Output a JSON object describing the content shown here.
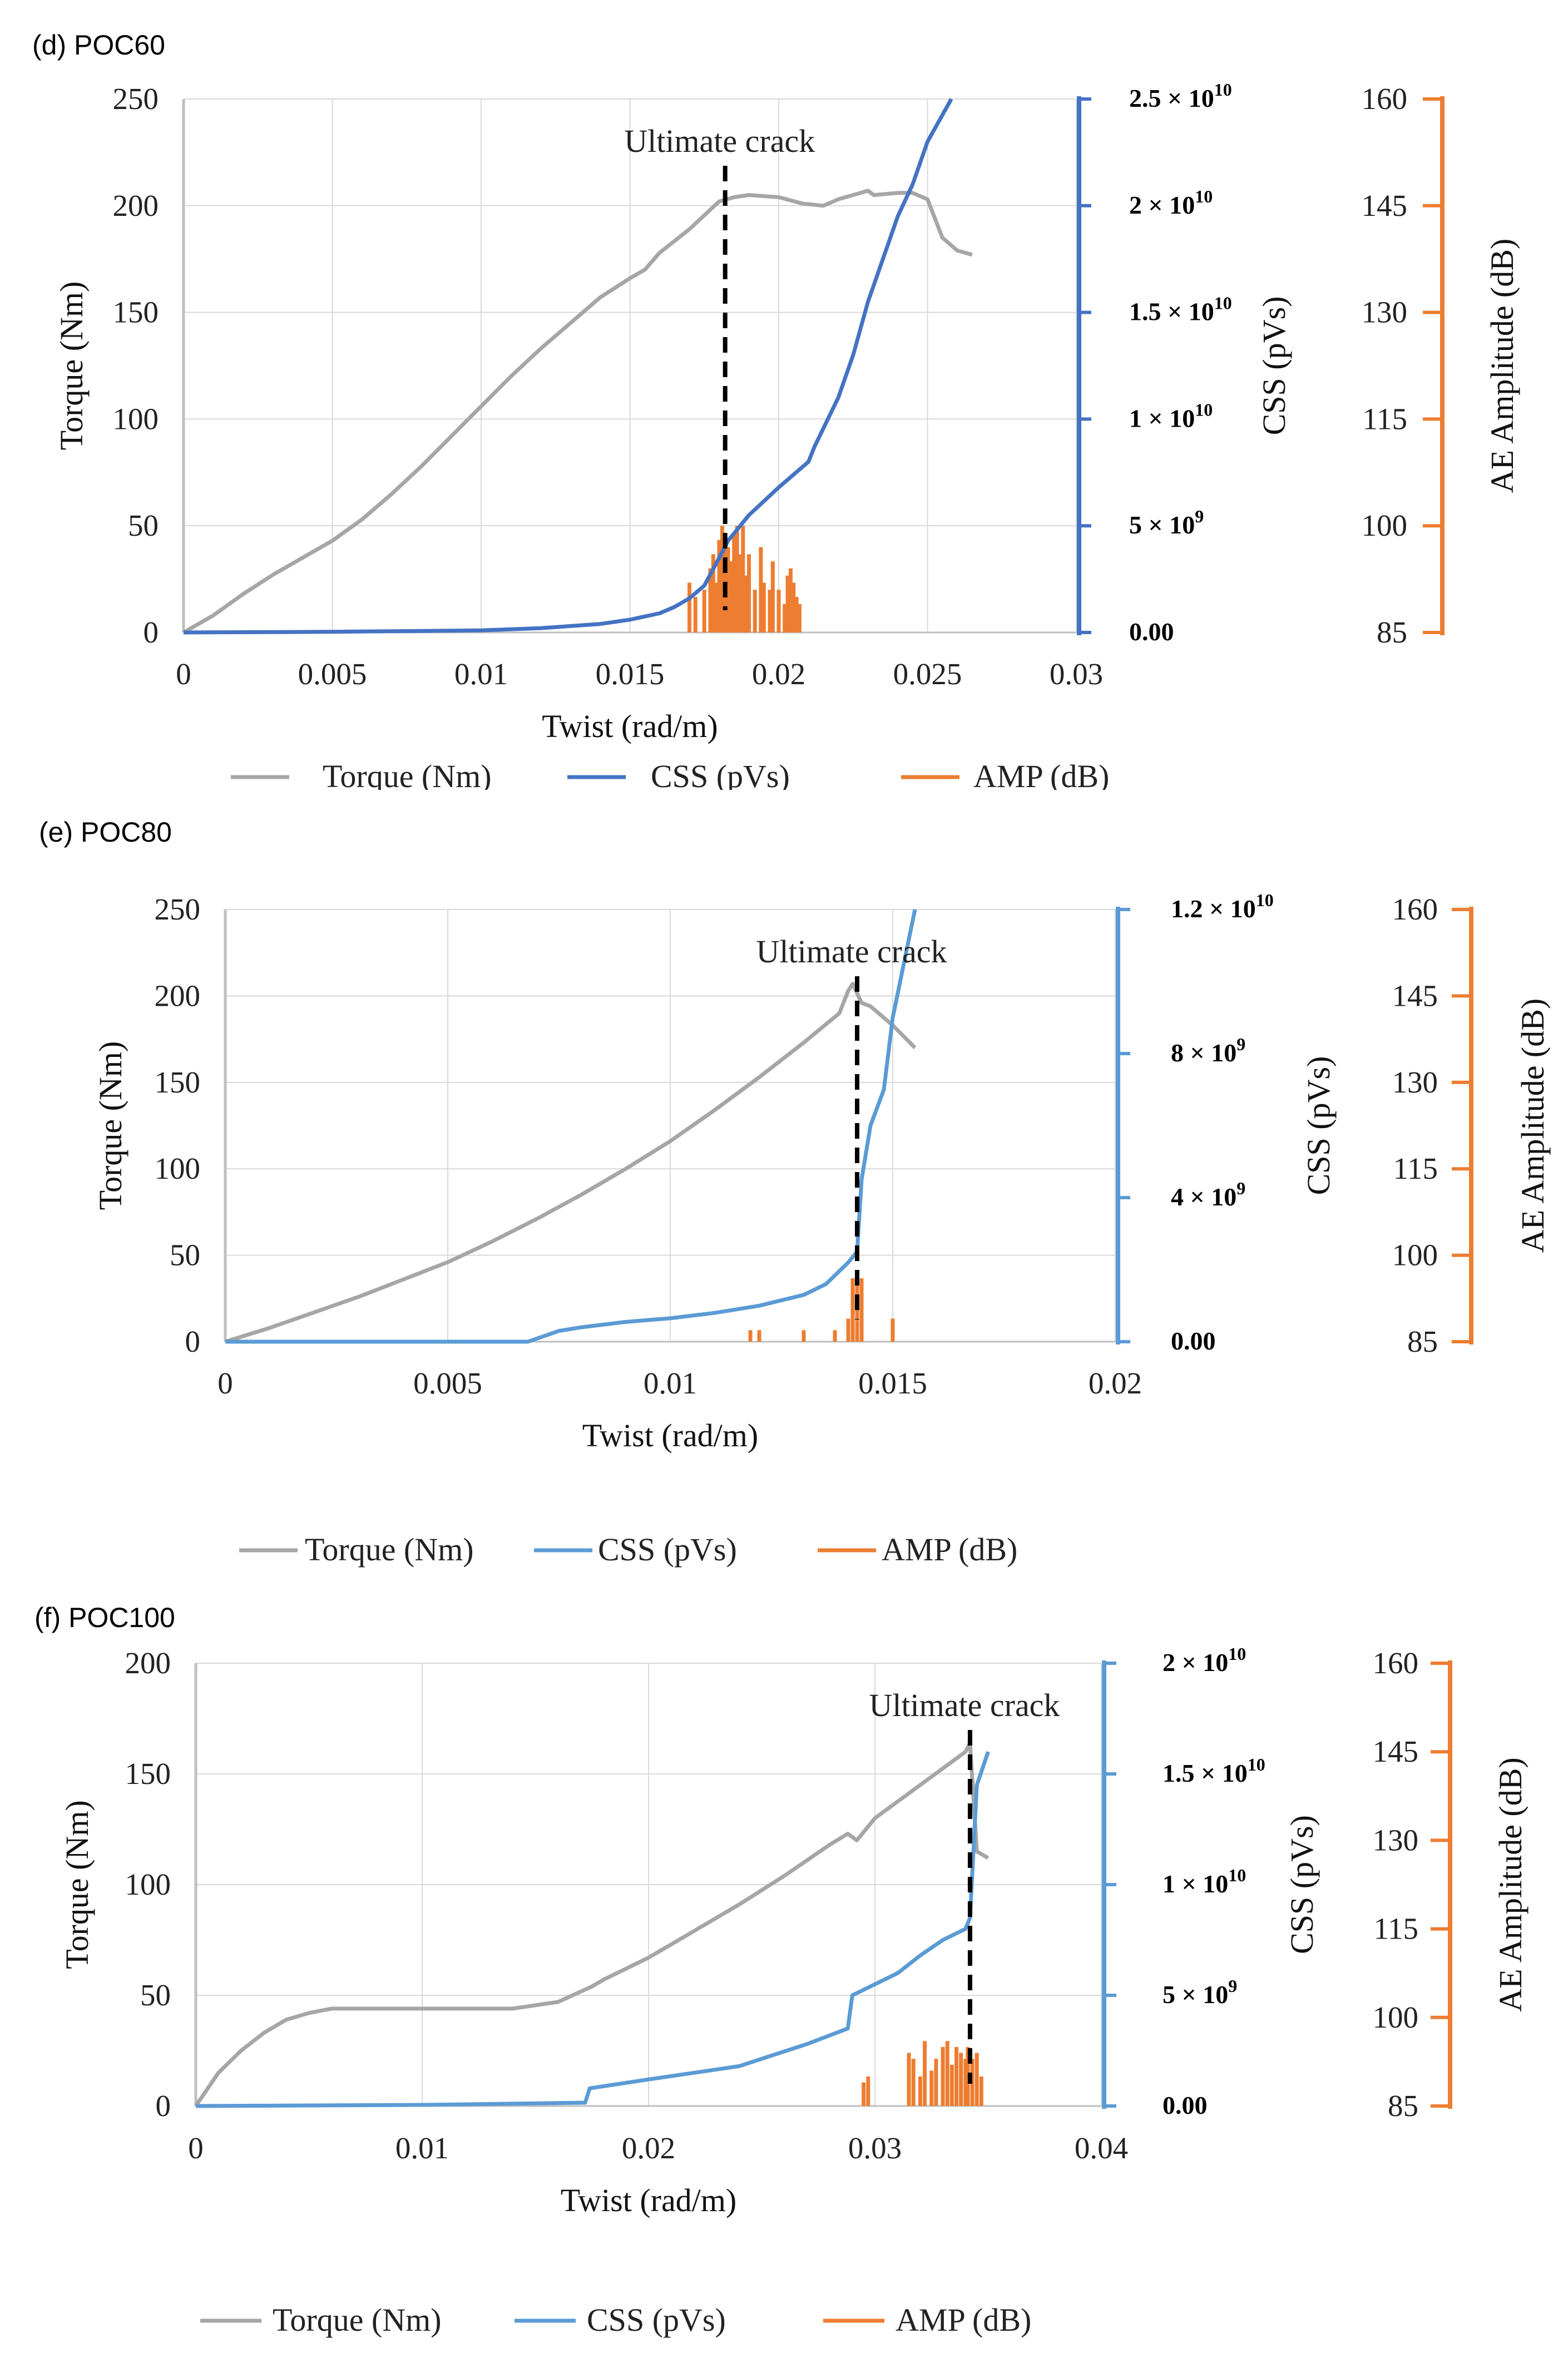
{
  "legend": {
    "torque": "Torque (Nm)",
    "css": "CSS (pVs)",
    "amp": "AMP (dB)"
  },
  "colors": {
    "torque": "#a6a6a6",
    "css_d": "#4472c4",
    "css_ef": "#5b9bd5",
    "amp": "#ed7d31",
    "grid": "#d9d9d9",
    "crack": "#000000"
  },
  "chart_data": [
    {
      "panel_label": "(d)  POC60",
      "type": "line",
      "xlabel": "Twist (rad/m)",
      "ylabel": "Torque (Nm)",
      "y2label": "CSS (pVs)",
      "y3label": "AE Amplitude (dB)",
      "annotation": "Ultimate crack",
      "crack_x": 0.0182,
      "xlim": [
        0,
        0.03
      ],
      "x_ticks": [
        0,
        0.005,
        0.01,
        0.015,
        0.02,
        0.025,
        0.03
      ],
      "x_tick_labels": [
        "0",
        "0.005",
        "0.01",
        "0.015",
        "0.02",
        "0.025",
        "0.03"
      ],
      "ylim": [
        0,
        250
      ],
      "y_ticks": [
        0,
        50,
        100,
        150,
        200,
        250
      ],
      "y_tick_labels": [
        "0",
        "50",
        "100",
        "150",
        "200",
        "250"
      ],
      "y2lim": [
        0,
        25000000000
      ],
      "y2_ticks": [
        0,
        5000000000,
        10000000000,
        15000000000,
        20000000000,
        25000000000
      ],
      "y2_tick_labels": [
        {
          "base": "0.00",
          "exp": ""
        },
        {
          "base": "5 × 10",
          "exp": "9"
        },
        {
          "base": "1 × 10",
          "exp": "10"
        },
        {
          "base": "1.5 × 10",
          "exp": "10"
        },
        {
          "base": "2 × 10",
          "exp": "10"
        },
        {
          "base": "2.5 × 10",
          "exp": "10"
        }
      ],
      "y3lim": [
        85,
        160
      ],
      "y3_ticks": [
        85,
        100,
        115,
        130,
        145,
        160
      ],
      "y3_tick_labels": [
        "85",
        "100",
        "115",
        "130",
        "145",
        "160"
      ],
      "series": [
        {
          "name": "Torque (Nm)",
          "axis": "torque",
          "x": [
            0,
            0.001,
            0.002,
            0.003,
            0.004,
            0.005,
            0.006,
            0.007,
            0.008,
            0.009,
            0.01,
            0.011,
            0.012,
            0.013,
            0.014,
            0.015,
            0.0155,
            0.016,
            0.017,
            0.018,
            0.0185,
            0.019,
            0.02,
            0.0208,
            0.0215,
            0.022,
            0.023,
            0.0232,
            0.024,
            0.0245,
            0.025,
            0.0255,
            0.026,
            0.0265
          ],
          "y": [
            0,
            8,
            18,
            27,
            35,
            43,
            53,
            65,
            78,
            92,
            106,
            120,
            133,
            145,
            157,
            166,
            170,
            178,
            189,
            202,
            204,
            205,
            204,
            201,
            200,
            203,
            207,
            205,
            206,
            206,
            203,
            185,
            179,
            177
          ]
        },
        {
          "name": "CSS (pVs)",
          "axis": "css",
          "x": [
            0,
            0.005,
            0.01,
            0.012,
            0.014,
            0.015,
            0.016,
            0.0165,
            0.017,
            0.0175,
            0.018,
            0.0183,
            0.019,
            0.02,
            0.021,
            0.0212,
            0.022,
            0.0225,
            0.023,
            0.0235,
            0.024,
            0.0245,
            0.025,
            0.0258
          ],
          "y": [
            0,
            30000000,
            100000000,
            200000000,
            400000000,
            600000000,
            900000000,
            1200000000,
            1600000000,
            2200000000,
            3500000000,
            4300000000,
            5500000000,
            6800000000,
            8000000000,
            8700000000,
            11000000000,
            13000000000,
            15500000000,
            17500000000,
            19500000000,
            21000000000,
            23000000000,
            25000000000
          ]
        },
        {
          "name": "AMP (dB)",
          "axis": "amp",
          "x": [
            0.017,
            0.0172,
            0.0175,
            0.0177,
            0.0178,
            0.0179,
            0.018,
            0.0181,
            0.0182,
            0.0183,
            0.0184,
            0.0185,
            0.0186,
            0.0187,
            0.0188,
            0.0189,
            0.019,
            0.0192,
            0.0194,
            0.0195,
            0.0197,
            0.0198,
            0.02,
            0.0202,
            0.0203,
            0.0204,
            0.0205,
            0.0206,
            0.0207
          ],
          "y": [
            92,
            90,
            91,
            94,
            96,
            92,
            98,
            100,
            99,
            97,
            95,
            99,
            100,
            96,
            100,
            93,
            96,
            91,
            97,
            92,
            91,
            95,
            91,
            89,
            93,
            94,
            92,
            90,
            89
          ]
        }
      ]
    },
    {
      "panel_label": "(e)  POC80",
      "type": "line",
      "xlabel": "Twist (rad/m)",
      "ylabel": "Torque (Nm)",
      "y2label": "CSS (pVs)",
      "y3label": "AE Amplitude (dB)",
      "annotation": "Ultimate crack",
      "crack_x": 0.0142,
      "xlim": [
        0,
        0.02
      ],
      "x_ticks": [
        0,
        0.005,
        0.01,
        0.015,
        0.02
      ],
      "x_tick_labels": [
        "0",
        "0.005",
        "0.01",
        "0.015",
        "0.02"
      ],
      "ylim": [
        0,
        250
      ],
      "y_ticks": [
        0,
        50,
        100,
        150,
        200,
        250
      ],
      "y_tick_labels": [
        "0",
        "50",
        "100",
        "150",
        "200",
        "250"
      ],
      "y2lim": [
        0,
        12000000000
      ],
      "y2_ticks": [
        0,
        4000000000,
        8000000000,
        12000000000
      ],
      "y2_tick_labels": [
        {
          "base": "0.00",
          "exp": ""
        },
        {
          "base": "4 × 10",
          "exp": "9"
        },
        {
          "base": "8 × 10",
          "exp": "9"
        },
        {
          "base": "1.2 × 10",
          "exp": "10"
        }
      ],
      "y3lim": [
        85,
        160
      ],
      "y3_ticks": [
        85,
        100,
        115,
        130,
        145,
        160
      ],
      "y3_tick_labels": [
        "85",
        "100",
        "115",
        "130",
        "145",
        "160"
      ],
      "series": [
        {
          "name": "Torque (Nm)",
          "axis": "torque",
          "x": [
            0,
            0.001,
            0.002,
            0.003,
            0.004,
            0.005,
            0.006,
            0.007,
            0.008,
            0.009,
            0.01,
            0.011,
            0.012,
            0.013,
            0.0138,
            0.014,
            0.0141,
            0.0143,
            0.0145,
            0.015,
            0.0155
          ],
          "y": [
            0,
            8,
            17,
            26,
            36,
            46,
            58,
            71,
            85,
            100,
            116,
            134,
            153,
            173,
            190,
            203,
            207,
            196,
            194,
            183,
            170
          ]
        },
        {
          "name": "CSS (pVs)",
          "axis": "css",
          "x": [
            0,
            0.005,
            0.0068,
            0.0075,
            0.008,
            0.009,
            0.01,
            0.011,
            0.012,
            0.013,
            0.0135,
            0.014,
            0.0142,
            0.0143,
            0.0145,
            0.0148,
            0.015,
            0.0153,
            0.0155
          ],
          "y": [
            0,
            0,
            0,
            300000000,
            400000000,
            550000000,
            650000000,
            800000000,
            1000000000,
            1300000000,
            1600000000,
            2200000000,
            2500000000,
            4500000000,
            6000000000,
            7000000000,
            9000000000,
            10800000000,
            12000000000
          ]
        },
        {
          "name": "AMP (dB)",
          "axis": "amp",
          "x": [
            0.0118,
            0.012,
            0.013,
            0.0137,
            0.014,
            0.0141,
            0.0142,
            0.0143,
            0.015
          ],
          "y": [
            87,
            87,
            87,
            87,
            89,
            96,
            97,
            96,
            89
          ]
        }
      ]
    },
    {
      "panel_label": "(f)  POC100",
      "type": "line",
      "xlabel": "Twist (rad/m)",
      "ylabel": "Torque (Nm)",
      "y2label": "CSS (pVs)",
      "y3label": "AE Amplitude (dB)",
      "annotation": "Ultimate crack",
      "crack_x": 0.0342,
      "xlim": [
        0,
        0.04
      ],
      "x_ticks": [
        0,
        0.01,
        0.02,
        0.03,
        0.04
      ],
      "x_tick_labels": [
        "0",
        "0.01",
        "0.02",
        "0.03",
        "0.04"
      ],
      "ylim": [
        0,
        200
      ],
      "y_ticks": [
        0,
        50,
        100,
        150,
        200
      ],
      "y_tick_labels": [
        "0",
        "50",
        "100",
        "150",
        "200"
      ],
      "y2lim": [
        0,
        20000000000
      ],
      "y2_ticks": [
        0,
        5000000000,
        10000000000,
        15000000000,
        20000000000
      ],
      "y2_tick_labels": [
        {
          "base": "0.00",
          "exp": ""
        },
        {
          "base": "5 × 10",
          "exp": "9"
        },
        {
          "base": "1 × 10",
          "exp": "10"
        },
        {
          "base": "1.5 × 10",
          "exp": "10"
        },
        {
          "base": "2 × 10",
          "exp": "10"
        }
      ],
      "y3lim": [
        85,
        160
      ],
      "y3_ticks": [
        85,
        100,
        115,
        130,
        145,
        160
      ],
      "y3_tick_labels": [
        "85",
        "100",
        "115",
        "130",
        "145",
        "160"
      ],
      "series": [
        {
          "name": "Torque (Nm)",
          "axis": "torque",
          "x": [
            0,
            0.001,
            0.002,
            0.003,
            0.004,
            0.005,
            0.006,
            0.007,
            0.01,
            0.014,
            0.016,
            0.0175,
            0.018,
            0.02,
            0.022,
            0.024,
            0.026,
            0.028,
            0.0288,
            0.0292,
            0.03,
            0.032,
            0.034,
            0.0342,
            0.0345,
            0.035
          ],
          "y": [
            0,
            15,
            25,
            33,
            39,
            42,
            44,
            44,
            44,
            44,
            47,
            54,
            57,
            67,
            79,
            91,
            104,
            118,
            123,
            120,
            130,
            145,
            160,
            164,
            115,
            112
          ]
        },
        {
          "name": "CSS (pVs)",
          "axis": "css",
          "x": [
            0,
            0.01,
            0.0172,
            0.0174,
            0.02,
            0.024,
            0.027,
            0.0288,
            0.029,
            0.03,
            0.031,
            0.032,
            0.033,
            0.034,
            0.0342,
            0.0345,
            0.035
          ],
          "y": [
            0,
            50000000,
            150000000,
            800000000,
            1200000000,
            1800000000,
            2800000000,
            3500000000,
            5000000000,
            5500000000,
            6000000000,
            6800000000,
            7500000000,
            8000000000,
            8500000000,
            14500000000,
            16000000000
          ]
        },
        {
          "name": "AMP (dB)",
          "axis": "amp",
          "x": [
            0.0295,
            0.0297,
            0.0315,
            0.0317,
            0.032,
            0.0322,
            0.0325,
            0.0327,
            0.033,
            0.0332,
            0.0334,
            0.0336,
            0.0338,
            0.034,
            0.0341,
            0.0343,
            0.0345,
            0.0347
          ],
          "y": [
            89,
            90,
            94,
            93,
            90,
            96,
            91,
            93,
            95,
            96,
            92,
            95,
            94,
            93,
            95,
            93,
            94,
            90
          ]
        }
      ]
    }
  ]
}
